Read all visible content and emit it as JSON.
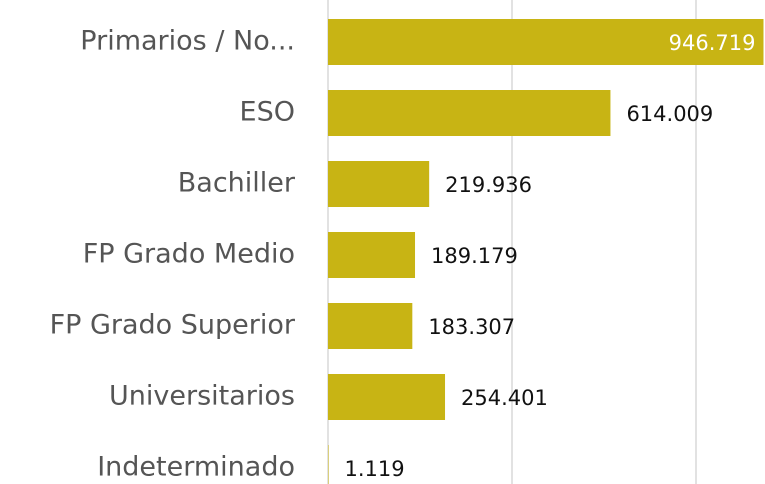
{
  "chart_data": {
    "type": "bar",
    "orientation": "horizontal",
    "categories": [
      "Primarios / No...",
      "ESO",
      "Bachiller",
      "FP Grado Medio",
      "FP Grado Superior",
      "Universitarios",
      "Indeterminado"
    ],
    "values": [
      946719,
      614009,
      219936,
      189179,
      183307,
      254401,
      1119
    ],
    "value_labels": [
      "946.719",
      "614.009",
      "219.936",
      "189.179",
      "183.307",
      "254.401",
      "1.119"
    ],
    "color": "#c8b414",
    "xlim": [
      0,
      950000
    ],
    "xticks": [
      0,
      400000,
      800000
    ],
    "grid": true
  }
}
